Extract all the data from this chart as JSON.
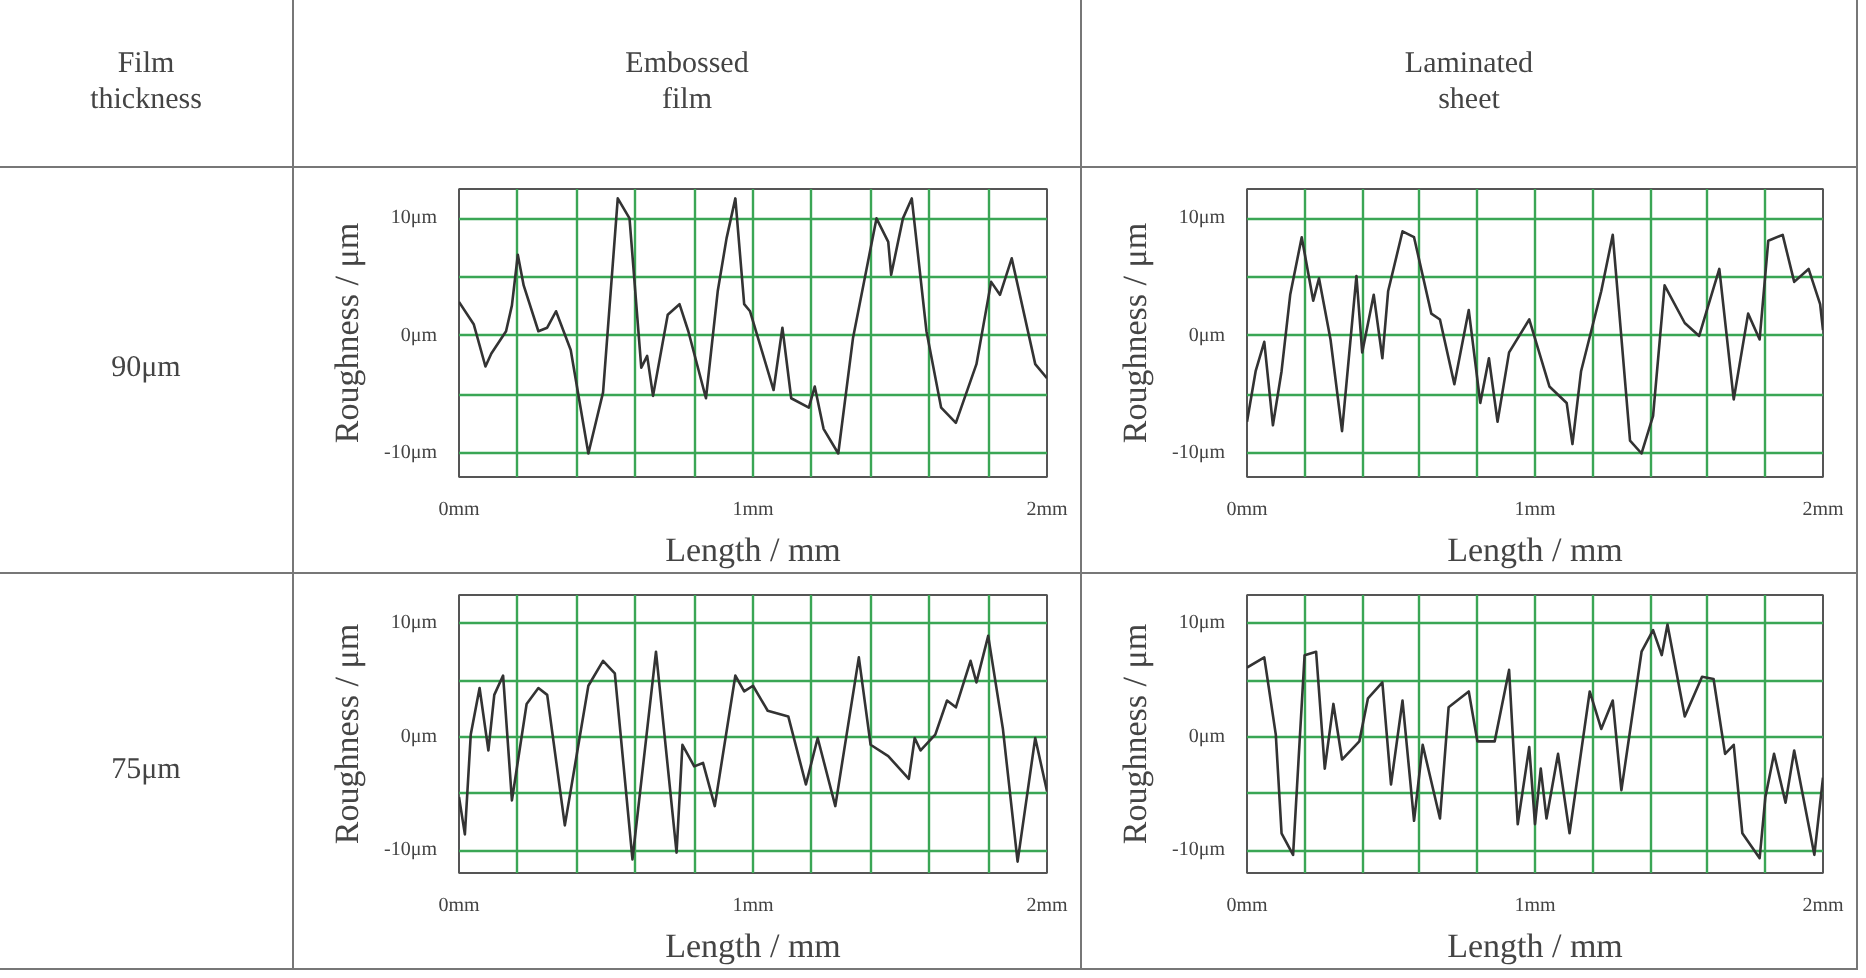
{
  "chart_data": [
    {
      "type": "other",
      "annotations": [
        "Film\nthickness",
        "Embossed\nfilm",
        "Laminated\nsheet",
        "90μm",
        "75μm"
      ]
    },
    {
      "type": "line",
      "xlabel": "Length / mm",
      "ylabel": "Roughness / μm",
      "xlim": [
        0,
        2
      ],
      "ylim": [
        -12,
        12.5
      ],
      "xticks": [
        {
          "value": 0,
          "label": "0mm"
        },
        {
          "value": 0.2,
          "label": null
        },
        {
          "value": 0.4,
          "label": null
        },
        {
          "value": 0.6,
          "label": null
        },
        {
          "value": 0.8,
          "label": null
        },
        {
          "value": 1,
          "label": "1mm"
        },
        {
          "value": 1.2,
          "label": null
        },
        {
          "value": 1.4,
          "label": null
        },
        {
          "value": 1.6,
          "label": null
        },
        {
          "value": 1.8,
          "label": null
        },
        {
          "value": 2,
          "label": "2mm"
        }
      ],
      "yticks": [
        {
          "value": -10,
          "label": "-10μm"
        },
        {
          "value": -5,
          "label": null
        },
        {
          "value": 0,
          "label": "0μm"
        },
        {
          "value": 5,
          "label": null
        },
        {
          "value": 10,
          "label": "10μm"
        }
      ],
      "grid": true,
      "series": [
        {
          "color": "#333333",
          "x": [
            0,
            0.05,
            0.09,
            0.11,
            0.16,
            0.18,
            0.2,
            0.22,
            0.27,
            0.3,
            0.33,
            0.38,
            0.44,
            0.49,
            0.54,
            0.58,
            0.62,
            0.64,
            0.66,
            0.71,
            0.75,
            0.78,
            0.84,
            0.88,
            0.91,
            0.94,
            0.97,
            0.99,
            1.07,
            1.1,
            1.13,
            1.19,
            1.21,
            1.24,
            1.29,
            1.34,
            1.42,
            1.46,
            1.47,
            1.51,
            1.54,
            1.59,
            1.64,
            1.69,
            1.76,
            1.81,
            1.84,
            1.88,
            1.96,
            2.0
          ],
          "values": [
            2.9,
            1.0,
            -2.6,
            -1.5,
            0.4,
            2.6,
            6.9,
            4.3,
            0.4,
            0.7,
            2.1,
            -1.2,
            -10,
            -4.8,
            11.7,
            10,
            -2.7,
            -1.7,
            -5.1,
            1.8,
            2.7,
            0.4,
            -5.3,
            3.8,
            8.3,
            11.7,
            2.7,
            2.1,
            -4.6,
            0.7,
            -5.3,
            -6.1,
            -4.3,
            -7.9,
            -10,
            -0.2,
            10,
            8.0,
            5.2,
            10,
            11.7,
            0.4,
            -6.1,
            -7.4,
            -2.4,
            4.6,
            3.5,
            6.6,
            -2.4,
            -3.6
          ]
        }
      ]
    },
    {
      "type": "line",
      "xlabel": "Length / mm",
      "ylabel": "Roughness / μm",
      "xlim": [
        0,
        2
      ],
      "ylim": [
        -12,
        12.5
      ],
      "xticks": [
        {
          "value": 0,
          "label": "0mm"
        },
        {
          "value": 0.2,
          "label": null
        },
        {
          "value": 0.4,
          "label": null
        },
        {
          "value": 0.6,
          "label": null
        },
        {
          "value": 0.8,
          "label": null
        },
        {
          "value": 1,
          "label": "1mm"
        },
        {
          "value": 1.2,
          "label": null
        },
        {
          "value": 1.4,
          "label": null
        },
        {
          "value": 1.6,
          "label": null
        },
        {
          "value": 1.8,
          "label": null
        },
        {
          "value": 2,
          "label": "2mm"
        }
      ],
      "yticks": [
        {
          "value": -10,
          "label": "-10μm"
        },
        {
          "value": -5,
          "label": null
        },
        {
          "value": 0,
          "label": "0μm"
        },
        {
          "value": 5,
          "label": null
        },
        {
          "value": 10,
          "label": "10μm"
        }
      ],
      "grid": true,
      "series": [
        {
          "color": "#333333",
          "x": [
            0,
            0.03,
            0.06,
            0.09,
            0.12,
            0.15,
            0.19,
            0.23,
            0.25,
            0.29,
            0.33,
            0.38,
            0.4,
            0.44,
            0.47,
            0.49,
            0.54,
            0.58,
            0.64,
            0.67,
            0.72,
            0.77,
            0.81,
            0.84,
            0.87,
            0.91,
            0.98,
            1.05,
            1.11,
            1.13,
            1.16,
            1.23,
            1.27,
            1.33,
            1.37,
            1.41,
            1.45,
            1.52,
            1.57,
            1.64,
            1.69,
            1.74,
            1.78,
            1.81,
            1.86,
            1.9,
            1.95,
            1.99,
            2.0
          ],
          "values": [
            -7.3,
            -3.0,
            -0.5,
            -7.6,
            -3.0,
            3.5,
            8.4,
            3.0,
            4.9,
            -0.3,
            -8.1,
            5.1,
            -1.4,
            3.5,
            -1.9,
            3.8,
            8.9,
            8.4,
            1.9,
            1.4,
            -4.1,
            2.2,
            -5.7,
            -1.9,
            -7.3,
            -1.4,
            1.4,
            -4.3,
            -5.7,
            -9.2,
            -3.0,
            3.8,
            8.6,
            -8.9,
            -10,
            -6.8,
            4.3,
            1.1,
            0,
            5.7,
            -5.4,
            1.9,
            -0.3,
            8.1,
            8.6,
            4.6,
            5.7,
            2.7,
            0.5
          ]
        }
      ]
    },
    {
      "type": "line",
      "xlabel": "Length / mm",
      "ylabel": "Roughness / μm",
      "xlim": [
        0,
        2
      ],
      "ylim": [
        -12,
        12.5
      ],
      "xticks": [
        {
          "value": 0,
          "label": "0mm"
        },
        {
          "value": 0.2,
          "label": null
        },
        {
          "value": 0.4,
          "label": null
        },
        {
          "value": 0.6,
          "label": null
        },
        {
          "value": 0.8,
          "label": null
        },
        {
          "value": 1,
          "label": "1mm"
        },
        {
          "value": 1.2,
          "label": null
        },
        {
          "value": 1.4,
          "label": null
        },
        {
          "value": 1.6,
          "label": null
        },
        {
          "value": 1.8,
          "label": null
        },
        {
          "value": 2,
          "label": "2mm"
        }
      ],
      "yticks": [
        {
          "value": -10,
          "label": "-10μm"
        },
        {
          "value": -5,
          "label": null
        },
        {
          "value": 0,
          "label": "0μm"
        },
        {
          "value": 5,
          "label": null
        },
        {
          "value": 10,
          "label": "10μm"
        }
      ],
      "grid": true,
      "series": [
        {
          "color": "#333333",
          "x": [
            0,
            0.02,
            0.04,
            0.07,
            0.1,
            0.12,
            0.15,
            0.18,
            0.23,
            0.27,
            0.3,
            0.36,
            0.44,
            0.49,
            0.53,
            0.59,
            0.67,
            0.74,
            0.76,
            0.8,
            0.83,
            0.87,
            0.94,
            0.97,
            1.0,
            1.05,
            1.12,
            1.18,
            1.22,
            1.28,
            1.36,
            1.4,
            1.46,
            1.53,
            1.55,
            1.57,
            1.62,
            1.66,
            1.69,
            1.74,
            1.76,
            1.8,
            1.85,
            1.9,
            1.96,
            2.0
          ],
          "values": [
            -5.3,
            -8.6,
            0.2,
            4.3,
            -1.2,
            3.7,
            5.4,
            -5.6,
            2.9,
            4.3,
            3.7,
            -7.8,
            4.5,
            6.7,
            5.6,
            -10.8,
            7.5,
            -10.2,
            -0.7,
            -2.6,
            -2.3,
            -6.1,
            5.4,
            4.0,
            4.5,
            2.3,
            1.8,
            -4.2,
            -0.1,
            -6.1,
            7.0,
            -0.7,
            -1.7,
            -3.7,
            -0.1,
            -1.2,
            0.2,
            3.2,
            2.6,
            6.7,
            4.8,
            8.9,
            0.7,
            -11,
            -0.1,
            -4.8
          ]
        }
      ]
    },
    {
      "type": "line",
      "xlabel": "Length / mm",
      "ylabel": "Roughness / μm",
      "xlim": [
        0,
        2
      ],
      "ylim": [
        -12,
        12.5
      ],
      "xticks": [
        {
          "value": 0,
          "label": "0mm"
        },
        {
          "value": 0.2,
          "label": null
        },
        {
          "value": 0.4,
          "label": null
        },
        {
          "value": 0.6,
          "label": null
        },
        {
          "value": 0.8,
          "label": null
        },
        {
          "value": 1,
          "label": "1mm"
        },
        {
          "value": 1.2,
          "label": null
        },
        {
          "value": 1.4,
          "label": null
        },
        {
          "value": 1.6,
          "label": null
        },
        {
          "value": 1.8,
          "label": null
        },
        {
          "value": 2,
          "label": "2mm"
        }
      ],
      "yticks": [
        {
          "value": -10,
          "label": "-10μm"
        },
        {
          "value": -5,
          "label": null
        },
        {
          "value": 0,
          "label": "0μm"
        },
        {
          "value": 5,
          "label": null
        },
        {
          "value": 10,
          "label": "10μm"
        }
      ],
      "grid": true,
      "series": [
        {
          "color": "#333333",
          "x": [
            0,
            0.06,
            0.1,
            0.12,
            0.16,
            0.2,
            0.24,
            0.27,
            0.3,
            0.33,
            0.39,
            0.42,
            0.47,
            0.5,
            0.54,
            0.58,
            0.61,
            0.67,
            0.7,
            0.77,
            0.8,
            0.86,
            0.91,
            0.94,
            0.98,
            1.0,
            1.02,
            1.04,
            1.08,
            1.12,
            1.19,
            1.23,
            1.27,
            1.3,
            1.37,
            1.41,
            1.44,
            1.46,
            1.52,
            1.58,
            1.62,
            1.66,
            1.69,
            1.72,
            1.78,
            1.8,
            1.83,
            1.87,
            1.9,
            1.97,
            2.0
          ],
          "values": [
            6.1,
            7.0,
            0.2,
            -8.5,
            -10.4,
            7.2,
            7.5,
            -2.8,
            2.9,
            -2.0,
            -0.4,
            3.4,
            4.8,
            -4.2,
            3.2,
            -7.4,
            -0.7,
            -7.2,
            2.6,
            4.0,
            -0.4,
            -0.4,
            5.9,
            -7.7,
            -0.9,
            -7.7,
            -2.8,
            -7.2,
            -1.5,
            -8.5,
            4.0,
            0.7,
            3.2,
            -4.7,
            7.5,
            9.4,
            7.2,
            9.9,
            1.8,
            5.3,
            5.1,
            -1.5,
            -0.7,
            -8.5,
            -10.7,
            -5.3,
            -1.5,
            -5.8,
            -1.2,
            -10.4,
            -3.6
          ]
        }
      ]
    }
  ]
}
